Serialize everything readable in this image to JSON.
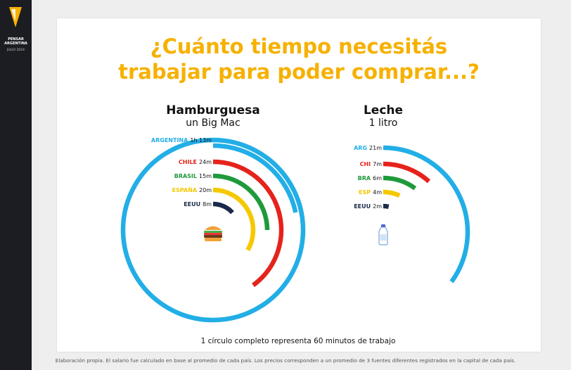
{
  "sidebar": {
    "brand_line1": "PENSAR",
    "brand_line2": "ARGENTINA",
    "date": "JULIO 2024"
  },
  "header": {
    "title_line1": "¿Cuánto tiempo necesitás",
    "title_line2": "trabajar para poder comprar...?"
  },
  "note": "1 círculo completo representa 60 minutos de trabajo",
  "footer": "Elaboración propia. El salario fue calculado en base al promedio de cada país. Los precios corresponden a un promedio de 3 fuentes diferentes registrados en la capital de cada país.",
  "colors": {
    "title": "#f6b100",
    "argentina": "#22aee6",
    "chile": "#e5231b",
    "brasil": "#1f9a3b",
    "espana": "#f5c800",
    "eeuu": "#1a2a4a"
  },
  "icons": {
    "burger": "hamburger-icon",
    "milk": "milk-bottle-icon"
  },
  "chart_data": [
    {
      "type": "radial-bar",
      "title": "Hamburguesa",
      "subtitle": "un Big Mac",
      "unit": "minutos",
      "full_circle_minutes": 60,
      "series": [
        {
          "country": "ARGENTINA",
          "label": "1h 13m",
          "minutes": 73
        },
        {
          "country": "CHILE",
          "label": "24m",
          "minutes": 24
        },
        {
          "country": "BRASIL",
          "label": "15m",
          "minutes": 15
        },
        {
          "country": "ESPAÑA",
          "label": "20m",
          "minutes": 20
        },
        {
          "country": "EEUU",
          "label": "8m",
          "minutes": 8
        }
      ]
    },
    {
      "type": "radial-bar",
      "title": "Leche",
      "subtitle": "1 litro",
      "unit": "minutos",
      "full_circle_minutes": 60,
      "series": [
        {
          "country": "ARG",
          "label": "21m",
          "minutes": 21
        },
        {
          "country": "CHI",
          "label": "7m",
          "minutes": 7
        },
        {
          "country": "BRA",
          "label": "6m",
          "minutes": 6
        },
        {
          "country": "ESP",
          "label": "4m",
          "minutes": 4
        },
        {
          "country": "EEUU",
          "label": "2m",
          "minutes": 2
        }
      ]
    }
  ]
}
